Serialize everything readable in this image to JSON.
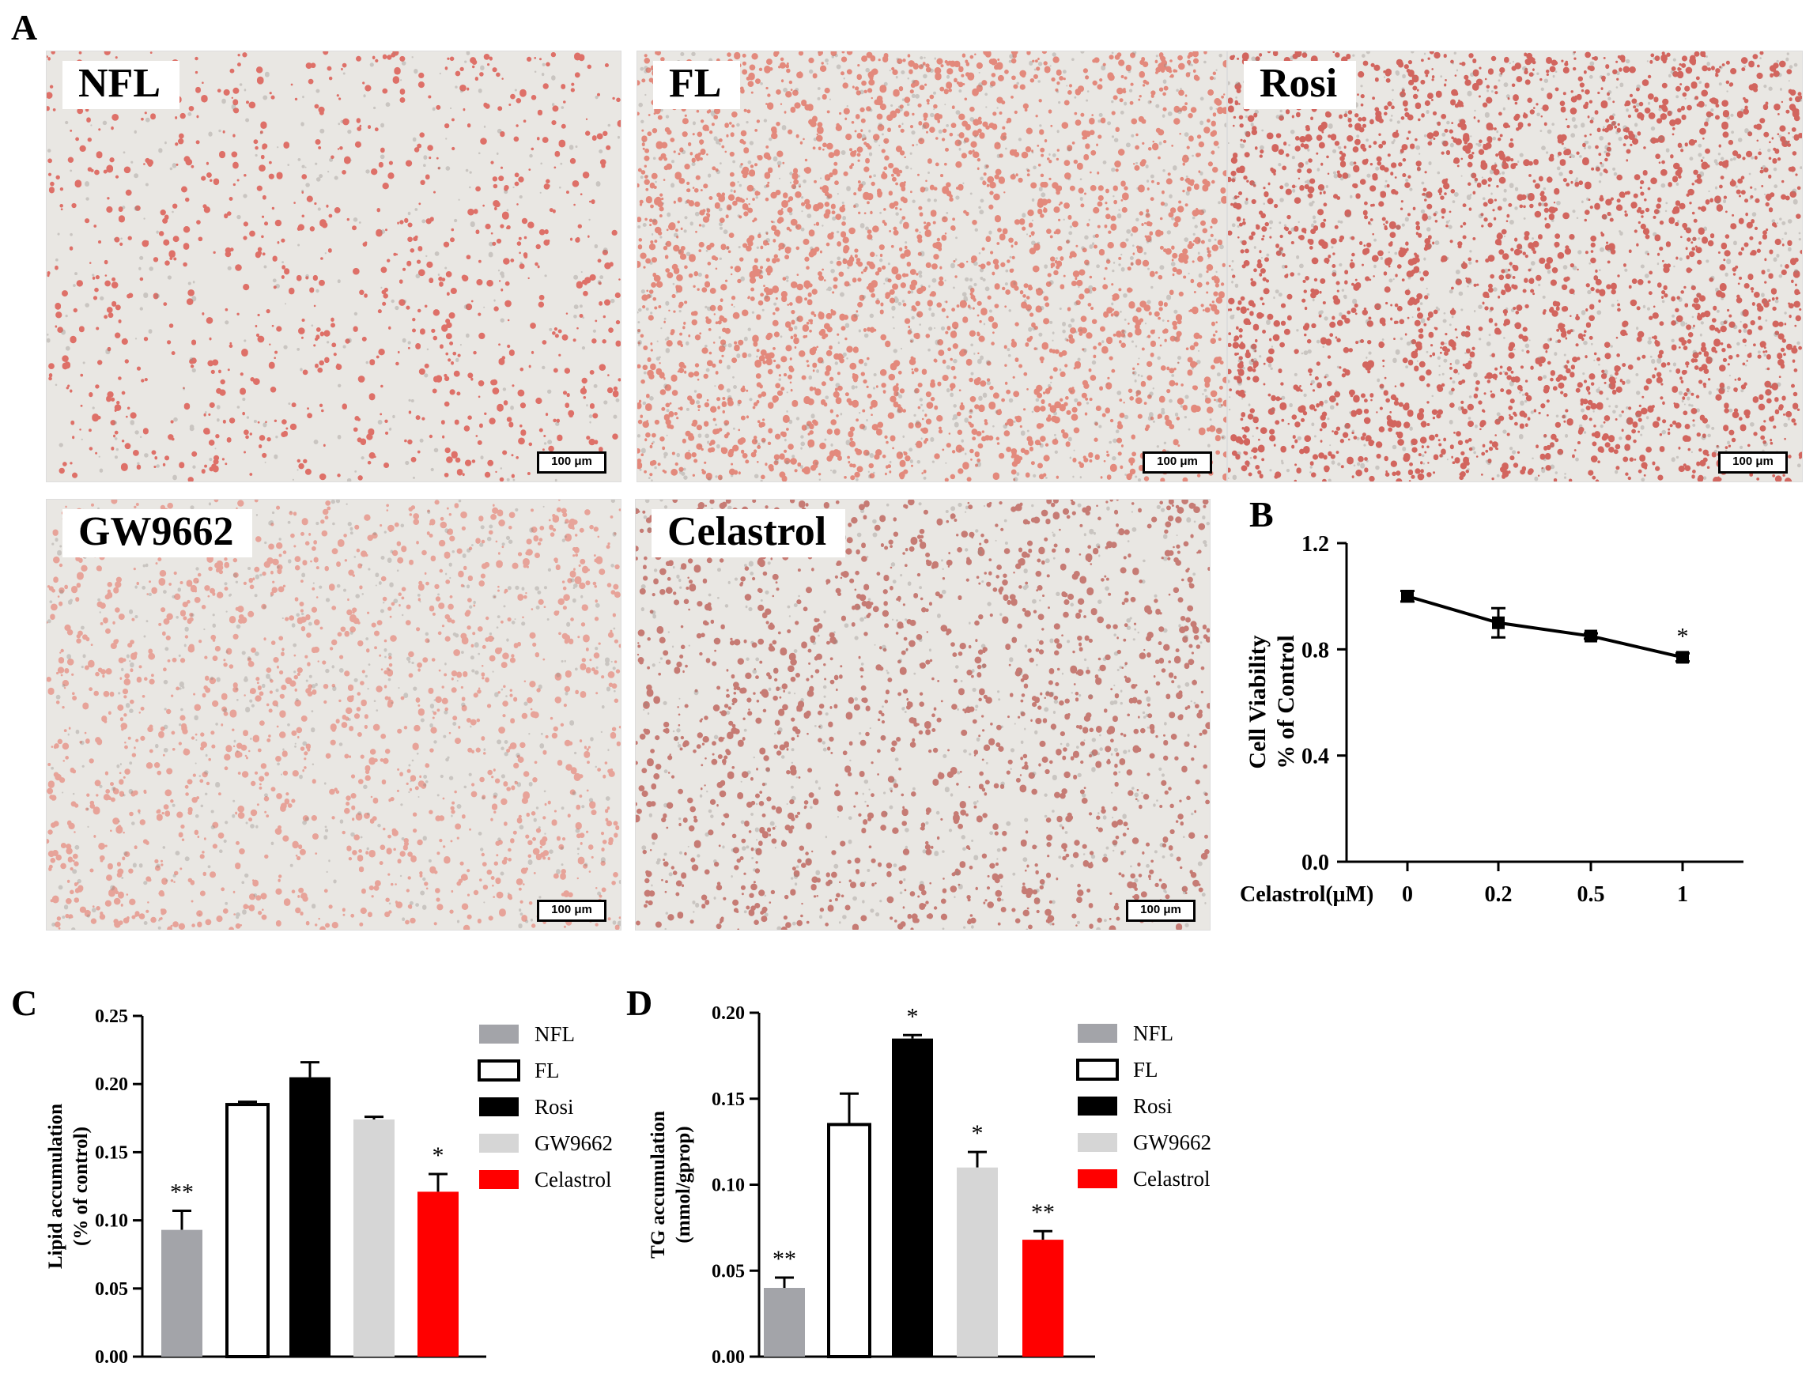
{
  "panel_letters": {
    "a": "A",
    "b": "B",
    "c": "C",
    "d": "D"
  },
  "micrographs": [
    {
      "label": "NFL",
      "scale": "100 μm",
      "density": "low"
    },
    {
      "label": "FL",
      "scale": "100 μm",
      "density": "high"
    },
    {
      "label": "Rosi",
      "scale": "100 μm",
      "density": "high"
    },
    {
      "label": "GW9662",
      "scale": "100 μm",
      "density": "medium"
    },
    {
      "label": "Celastrol",
      "scale": "100 μm",
      "density": "medium"
    }
  ],
  "colors": {
    "nfl": "#a3a4a9",
    "fl": "#ffffff",
    "rosi": "#000000",
    "gw9662": "#d6d6d6",
    "celastrol": "#ff0000",
    "stain": "#d9483f",
    "background": "#e9e7e3"
  },
  "chart_data": [
    {
      "id": "B",
      "type": "line",
      "x_categories": [
        "0",
        "0.2",
        "0.5",
        "1"
      ],
      "values": [
        1.0,
        0.9,
        0.85,
        0.77
      ],
      "errors": [
        0.02,
        0.055,
        0.01,
        0.015
      ],
      "significance": [
        "",
        "",
        "",
        "*"
      ],
      "xlabel": "Celastrol(μM)",
      "ylabel_line1": "Cell Viability",
      "ylabel_line2": "% of Control",
      "ylim": [
        0,
        1.2
      ],
      "yticks": [
        "0.0",
        "0.4",
        "0.8",
        "1.2"
      ]
    },
    {
      "id": "C",
      "type": "bar",
      "categories": [
        "NFL",
        "FL",
        "Rosi",
        "GW9662",
        "Celastrol"
      ],
      "values": [
        0.093,
        0.185,
        0.205,
        0.174,
        0.121
      ],
      "errors": [
        0.014,
        0.002,
        0.011,
        0.002,
        0.013
      ],
      "significance": [
        "**",
        "",
        "",
        "",
        "*"
      ],
      "ylabel_line1": "Lipid accumulation",
      "ylabel_line2": "(% of control)",
      "ylim": [
        0,
        0.25
      ],
      "yticks": [
        "0.00",
        "0.05",
        "0.10",
        "0.15",
        "0.20",
        "0.25"
      ],
      "legend": [
        "NFL",
        "FL",
        "Rosi",
        "GW9662",
        "Celastrol"
      ]
    },
    {
      "id": "D",
      "type": "bar",
      "categories": [
        "NFL",
        "FL",
        "Rosi",
        "GW9662",
        "Celastrol"
      ],
      "values": [
        0.04,
        0.135,
        0.185,
        0.11,
        0.068
      ],
      "errors": [
        0.006,
        0.018,
        0.002,
        0.009,
        0.005
      ],
      "significance": [
        "**",
        "",
        "*",
        "*",
        "**"
      ],
      "ylabel_line1": "TG accumulation",
      "ylabel_line2": "(mmol/gprop)",
      "ylim": [
        0,
        0.2
      ],
      "yticks": [
        "0.00",
        "0.05",
        "0.10",
        "0.15",
        "0.20"
      ],
      "legend": [
        "NFL",
        "FL",
        "Rosi",
        "GW9662",
        "Celastrol"
      ]
    }
  ]
}
